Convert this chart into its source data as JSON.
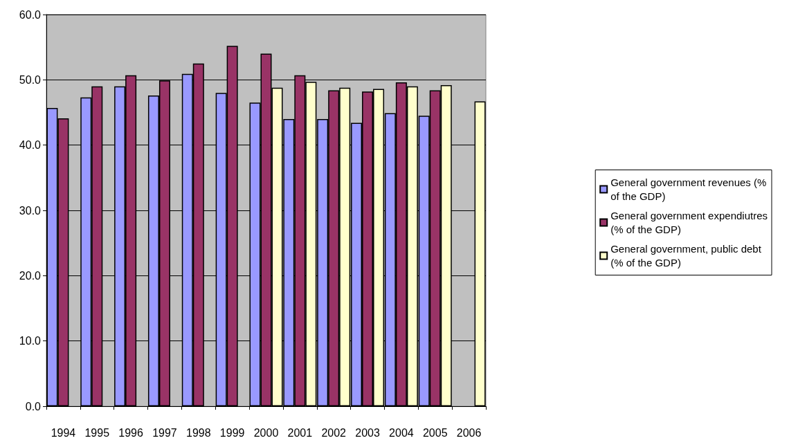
{
  "chart_data": {
    "type": "bar",
    "categories": [
      "1994",
      "1995",
      "1996",
      "1997",
      "1998",
      "1999",
      "2000",
      "2001",
      "2002",
      "2003",
      "2004",
      "2005",
      "2006"
    ],
    "series": [
      {
        "name": "General government revenues (% of the GDP)",
        "color": "#9999ff",
        "values": [
          45.7,
          47.3,
          49.0,
          47.6,
          50.9,
          48.0,
          46.5,
          44.0,
          44.0,
          43.4,
          44.9,
          44.5,
          null
        ]
      },
      {
        "name": "General government expendiutres (% of the GDP)",
        "color": "#993366",
        "values": [
          44.1,
          49.0,
          50.7,
          49.9,
          52.5,
          55.2,
          54.0,
          50.7,
          48.4,
          48.2,
          49.6,
          48.4,
          null
        ]
      },
      {
        "name": "General government, public debt (% of the GDP)",
        "color": "#ffffcc",
        "values": [
          null,
          null,
          null,
          null,
          null,
          null,
          48.8,
          49.7,
          48.8,
          48.6,
          49.0,
          49.2,
          46.7
        ]
      }
    ],
    "ylim": [
      0,
      60
    ],
    "yticks": [
      {
        "value": 0,
        "label": "0.0"
      },
      {
        "value": 10,
        "label": "10.0"
      },
      {
        "value": 20,
        "label": "20.0"
      },
      {
        "value": 30,
        "label": "30.0"
      },
      {
        "value": 40,
        "label": "40.0"
      },
      {
        "value": 50,
        "label": "50.0"
      },
      {
        "value": 60,
        "label": "60.0"
      }
    ],
    "grid": "y",
    "legend": "right"
  }
}
